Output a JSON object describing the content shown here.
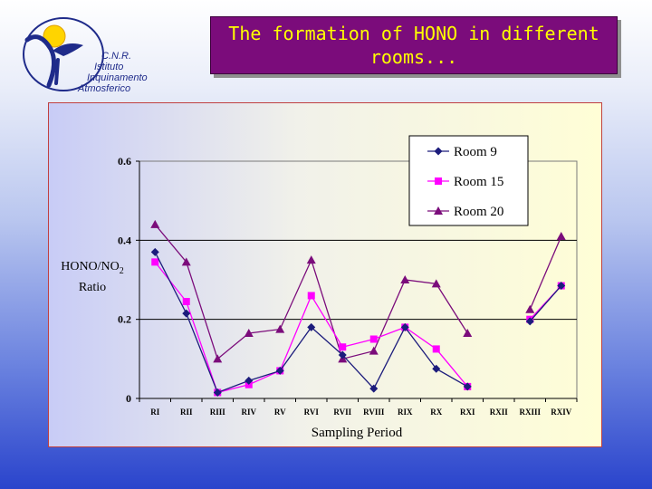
{
  "logo": {
    "line1": "C.N.R.",
    "line2": "Istituto",
    "line3": "Inquinamento",
    "line4": "Atmosferico"
  },
  "title": "The formation of HONO in different rooms...",
  "chart_data": {
    "type": "line",
    "ylabel_main": "HONO/NO",
    "ylabel_sub": "2",
    "ylabel_line2": "Ratio",
    "xlabel": "Sampling Period",
    "ylim": [
      0,
      0.6
    ],
    "yticks": [
      0,
      0.2,
      0.4,
      0.6
    ],
    "ytick_labels": [
      "0",
      "0.2",
      "0.4",
      "0.6"
    ],
    "categories": [
      "RI",
      "RII",
      "RIII",
      "RIV",
      "RV",
      "RVI",
      "RVII",
      "RVIII",
      "RIX",
      "RX",
      "RXI",
      "RXII",
      "RXIII",
      "RXIV"
    ],
    "grid": "horizontal",
    "legend_position": "top-right",
    "series": [
      {
        "name": "Room 9",
        "color": "#1c1c7c",
        "marker": "diamond",
        "values": [
          0.37,
          0.215,
          0.015,
          0.045,
          0.07,
          0.18,
          0.11,
          0.025,
          0.18,
          0.075,
          0.03,
          null,
          0.195,
          0.285
        ]
      },
      {
        "name": "Room 15",
        "color": "#ff00ff",
        "marker": "square",
        "values": [
          0.345,
          0.245,
          0.015,
          0.035,
          0.07,
          0.26,
          0.13,
          0.15,
          0.18,
          0.125,
          0.03,
          null,
          0.2,
          0.285
        ]
      },
      {
        "name": "Room 20",
        "color": "#7b0c7b",
        "marker": "triangle",
        "values": [
          0.44,
          0.345,
          0.1,
          0.165,
          0.175,
          0.35,
          0.1,
          0.12,
          0.3,
          0.29,
          0.165,
          null,
          0.225,
          0.41
        ]
      }
    ]
  }
}
